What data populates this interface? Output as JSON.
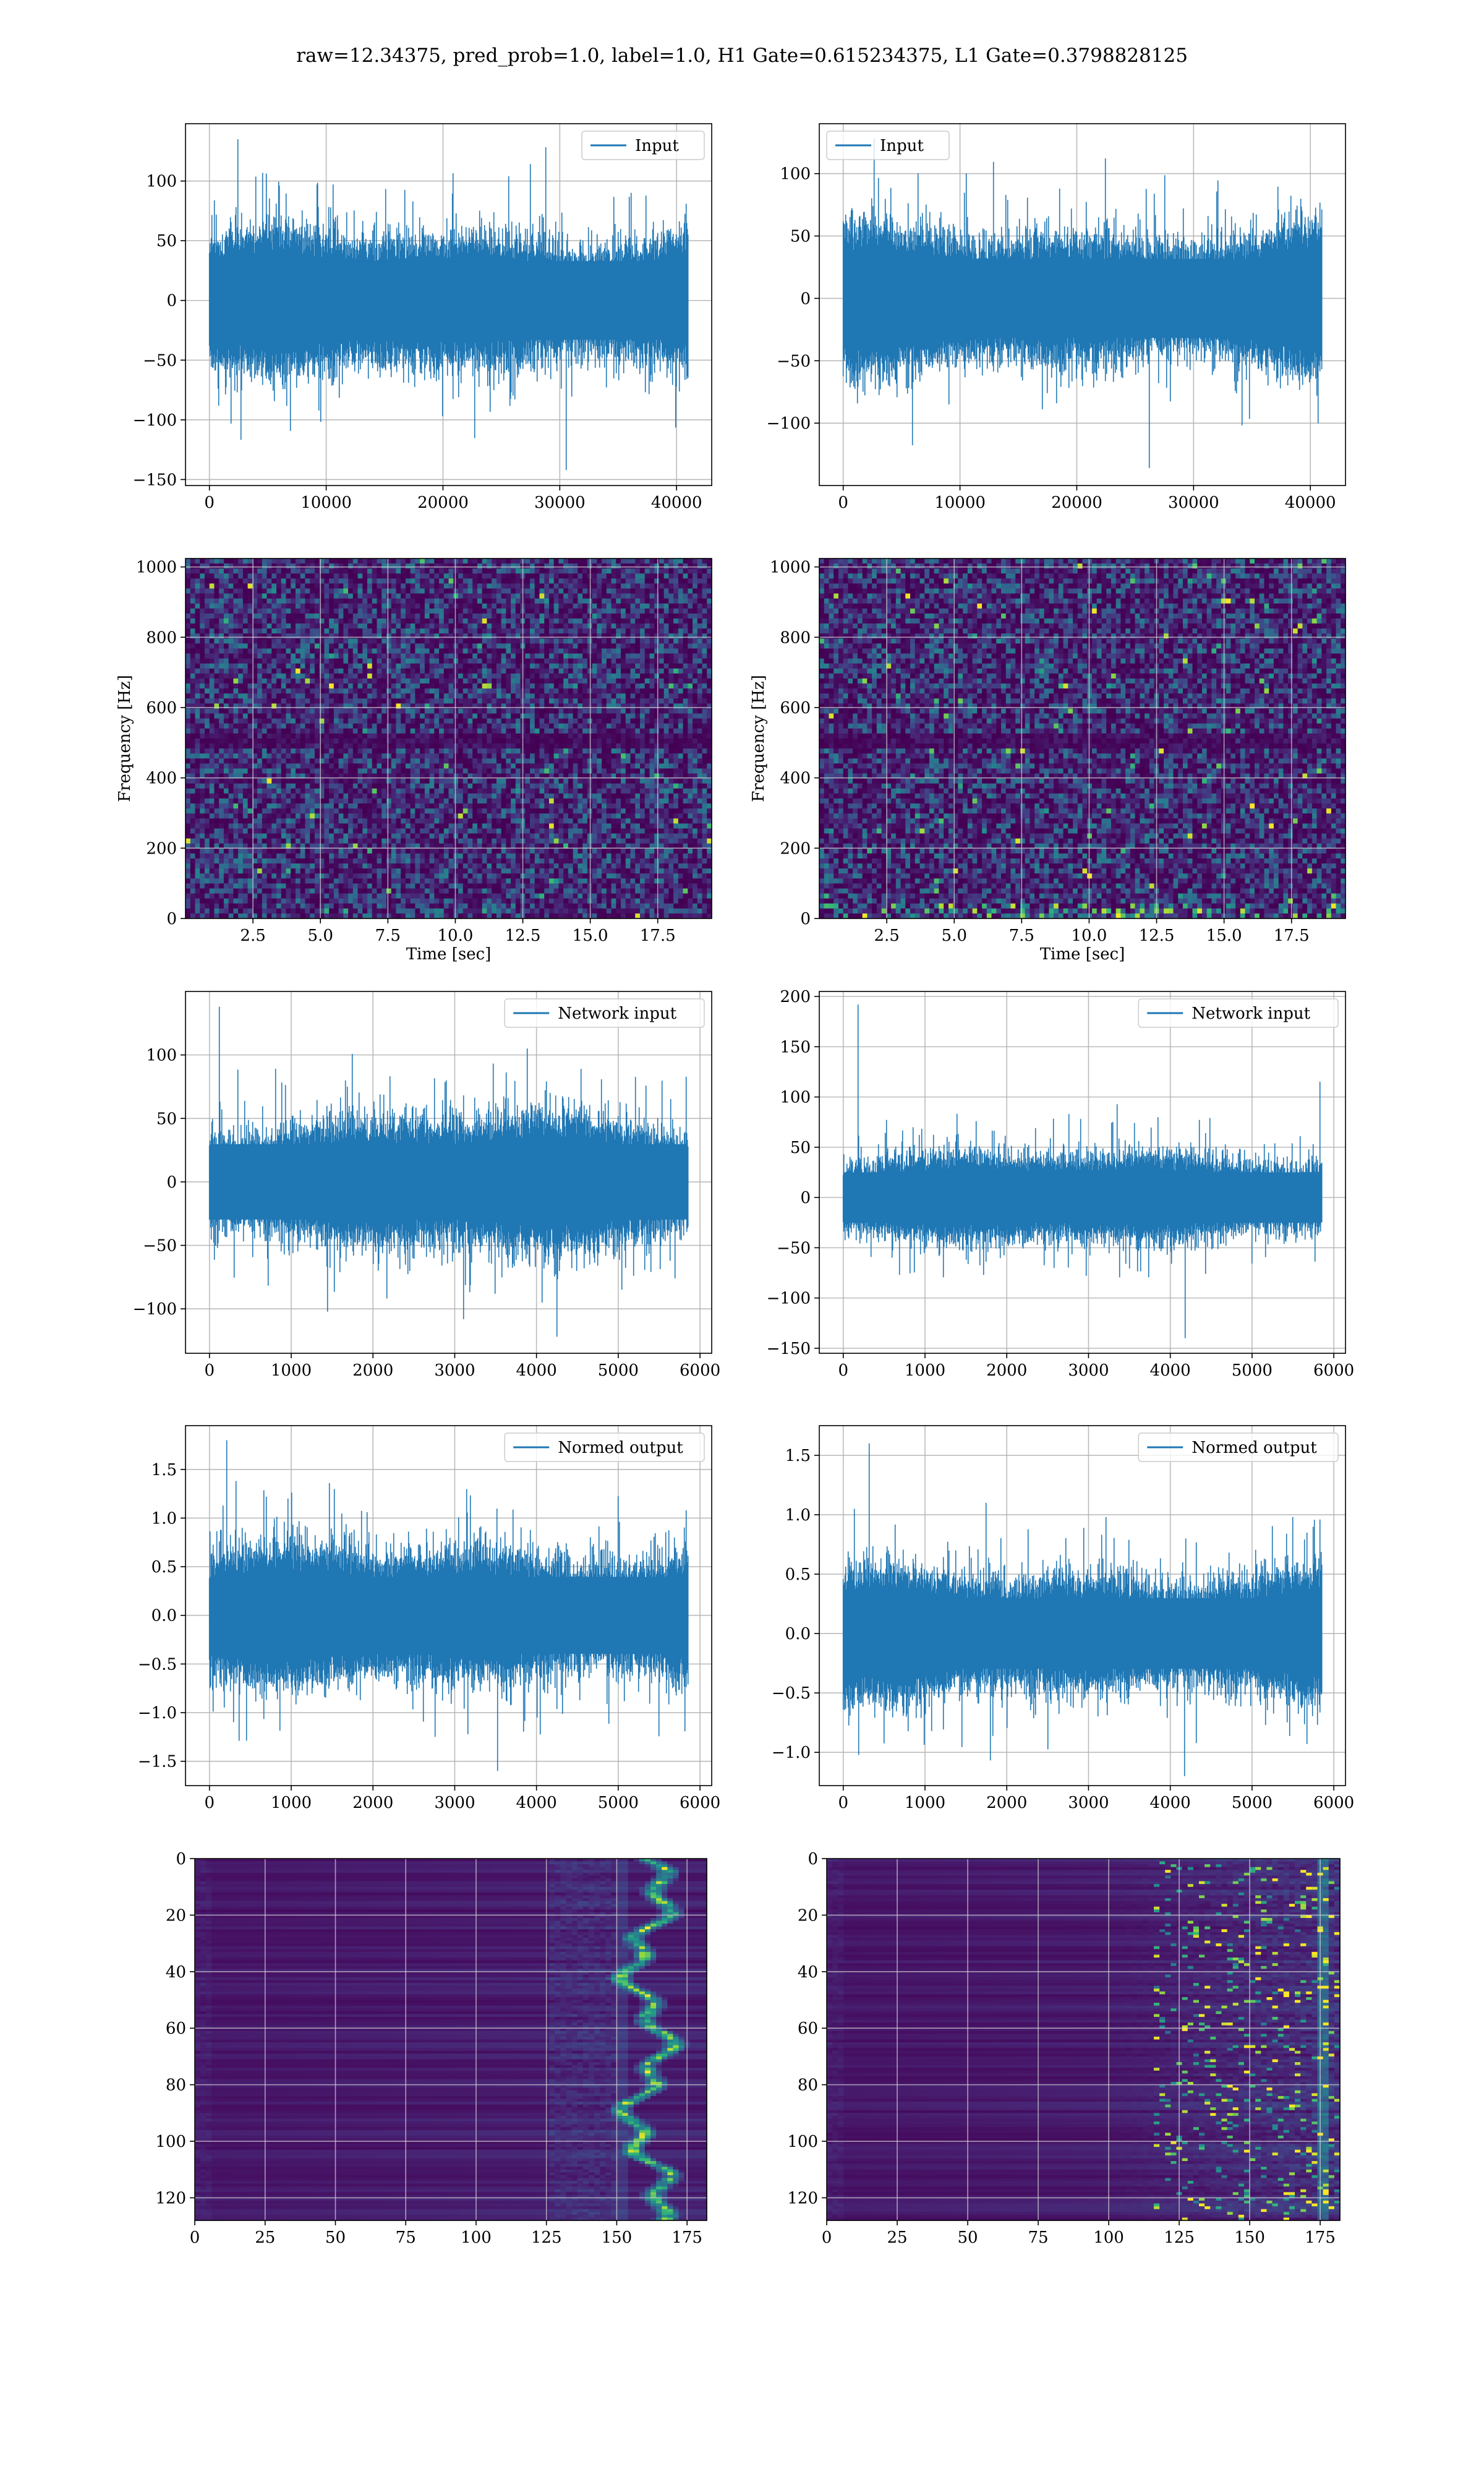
{
  "figure": {
    "suptitle": "raw=12.34375, pred_prob=1.0, label=1.0, H1 Gate=0.615234375, L1 Gate=0.3798828125"
  },
  "colors": {
    "series": "#1f77b4",
    "grid": "#b0b0b0",
    "cmap": "viridis"
  },
  "chart_data": [
    {
      "id": "input-h1",
      "type": "line",
      "title": "",
      "xlabel": "",
      "ylabel": "",
      "legend": [
        "Input"
      ],
      "legend_loc": "upper right",
      "grid": true,
      "series": [
        {
          "name": "Input",
          "n_points": 40960,
          "amplitude": {
            "typical": 50,
            "max": 135,
            "min": -142
          }
        }
      ],
      "xlim": [
        -2048,
        43008
      ],
      "ylim": [
        -155,
        148
      ],
      "xticks": [
        0,
        10000,
        20000,
        30000,
        40000
      ],
      "yticks": [
        -150,
        -100,
        -50,
        0,
        50,
        100
      ]
    },
    {
      "id": "input-l1",
      "type": "line",
      "title": "",
      "xlabel": "",
      "ylabel": "",
      "legend": [
        "Input"
      ],
      "legend_loc": "upper left",
      "grid": true,
      "series": [
        {
          "name": "Input",
          "n_points": 40960,
          "amplitude": {
            "typical": 48,
            "max": 128,
            "min": -136
          }
        }
      ],
      "xlim": [
        -2048,
        43008
      ],
      "ylim": [
        -150,
        140
      ],
      "xticks": [
        0,
        10000,
        20000,
        30000,
        40000
      ],
      "yticks": [
        -100,
        -50,
        0,
        50,
        100
      ]
    },
    {
      "id": "spec-h1",
      "type": "heatmap",
      "title": "",
      "xlabel": "Time [sec]",
      "ylabel": "Frequency [Hz]",
      "grid": true,
      "xlim": [
        0,
        19.5
      ],
      "ylim": [
        0,
        1024
      ],
      "xticks": [
        2.5,
        5.0,
        7.5,
        10.0,
        12.5,
        15.0,
        17.5
      ],
      "yticks": [
        0,
        200,
        400,
        600,
        800,
        1000
      ]
    },
    {
      "id": "spec-l1",
      "type": "heatmap",
      "title": "",
      "xlabel": "Time [sec]",
      "ylabel": "Frequency [Hz]",
      "grid": true,
      "xlim": [
        0,
        19.5
      ],
      "ylim": [
        0,
        1024
      ],
      "xticks": [
        2.5,
        5.0,
        7.5,
        10.0,
        12.5,
        15.0,
        17.5
      ],
      "yticks": [
        0,
        200,
        400,
        600,
        800,
        1000
      ]
    },
    {
      "id": "netin-h1",
      "type": "line",
      "title": "",
      "xlabel": "",
      "ylabel": "",
      "legend": [
        "Network input"
      ],
      "legend_loc": "upper right",
      "grid": true,
      "series": [
        {
          "name": "Network input",
          "n_points": 5850,
          "amplitude": {
            "typical": 45,
            "max": 138,
            "min": -122
          }
        }
      ],
      "xlim": [
        -293,
        6143
      ],
      "ylim": [
        -135,
        150
      ],
      "xticks": [
        0,
        1000,
        2000,
        3000,
        4000,
        5000,
        6000
      ],
      "yticks": [
        -100,
        -50,
        0,
        50,
        100
      ]
    },
    {
      "id": "netin-l1",
      "type": "line",
      "title": "",
      "xlabel": "",
      "ylabel": "",
      "legend": [
        "Network input"
      ],
      "legend_loc": "upper right",
      "grid": true,
      "series": [
        {
          "name": "Network input",
          "n_points": 5850,
          "amplitude": {
            "typical": 38,
            "max": 192,
            "min": -140
          }
        }
      ],
      "xlim": [
        -293,
        6143
      ],
      "ylim": [
        -155,
        205
      ],
      "xticks": [
        0,
        1000,
        2000,
        3000,
        4000,
        5000,
        6000
      ],
      "yticks": [
        -150,
        -100,
        -50,
        0,
        50,
        100,
        150,
        200
      ]
    },
    {
      "id": "normed-h1",
      "type": "line",
      "title": "",
      "xlabel": "",
      "ylabel": "",
      "legend": [
        "Normed output"
      ],
      "legend_loc": "upper right",
      "grid": true,
      "series": [
        {
          "name": "Normed output",
          "n_points": 5850,
          "amplitude": {
            "typical": 0.6,
            "max": 1.8,
            "min": -1.6
          }
        }
      ],
      "xlim": [
        -293,
        6143
      ],
      "ylim": [
        -1.75,
        1.95
      ],
      "xticks": [
        0,
        1000,
        2000,
        3000,
        4000,
        5000,
        6000
      ],
      "yticks": [
        -1.5,
        -1.0,
        -0.5,
        0.0,
        0.5,
        1.0,
        1.5
      ]
    },
    {
      "id": "normed-l1",
      "type": "line",
      "title": "",
      "xlabel": "",
      "ylabel": "",
      "legend": [
        "Normed output"
      ],
      "legend_loc": "upper right",
      "grid": true,
      "series": [
        {
          "name": "Normed output",
          "n_points": 5850,
          "amplitude": {
            "typical": 0.45,
            "max": 1.6,
            "min": -1.2
          }
        }
      ],
      "xlim": [
        -293,
        6143
      ],
      "ylim": [
        -1.28,
        1.75
      ],
      "xticks": [
        0,
        1000,
        2000,
        3000,
        4000,
        5000,
        6000
      ],
      "yticks": [
        -1.0,
        -0.5,
        0.0,
        0.5,
        1.0,
        1.5
      ]
    },
    {
      "id": "feat-h1",
      "type": "heatmap",
      "title": "",
      "xlabel": "",
      "ylabel": "",
      "grid": true,
      "rows": 128,
      "cols": 182,
      "y_inverted": true,
      "xlim": [
        0,
        182
      ],
      "ylim": [
        128,
        0
      ],
      "xticks": [
        0,
        25,
        50,
        75,
        100,
        125,
        150,
        175
      ],
      "yticks": [
        0,
        20,
        40,
        60,
        80,
        100,
        120
      ]
    },
    {
      "id": "feat-l1",
      "type": "heatmap",
      "title": "",
      "xlabel": "",
      "ylabel": "",
      "grid": true,
      "rows": 128,
      "cols": 182,
      "y_inverted": true,
      "xlim": [
        0,
        182
      ],
      "ylim": [
        128,
        0
      ],
      "xticks": [
        0,
        25,
        50,
        75,
        100,
        125,
        150,
        175
      ],
      "yticks": [
        0,
        20,
        40,
        60,
        80,
        100,
        120
      ]
    }
  ]
}
